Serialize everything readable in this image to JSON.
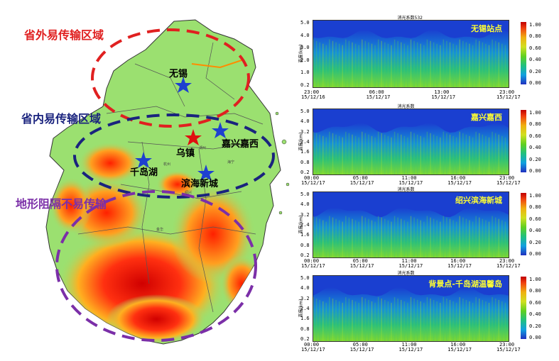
{
  "regions": {
    "outside": {
      "label": "省外易传输区域",
      "color": "#e02020"
    },
    "inside": {
      "label": "省内易传输区域",
      "color": "#1a237e"
    },
    "terrain": {
      "label": "地形阻隔不易传输",
      "color": "#7b2fa8"
    }
  },
  "map_labels": {
    "wuxi": "无锡",
    "wuzhen": "乌镇",
    "jiaxing": "嘉兴嘉西",
    "qiandao": "千岛湖",
    "binhai": "滨海新城",
    "small": [
      "湖州",
      "海宁",
      "杭州",
      "嘉兴",
      "绍兴",
      "宁波",
      "衢州",
      "金华",
      "丽水",
      "温州",
      "台州"
    ]
  },
  "panels": [
    {
      "id": "wuxi",
      "top_title": "消光系数532",
      "title": "无锡站点",
      "y_label": "高度(km)",
      "y_ticks": [
        "5.0",
        "4.0",
        "3.0",
        "2.0",
        "1.0",
        "0.2"
      ],
      "x_ticks": [
        [
          "23:00",
          "15/12/16"
        ],
        [
          "06:00",
          "15/12/17"
        ],
        [
          "13:00",
          "15/12/17"
        ],
        [
          "23:00",
          "15/12/17"
        ]
      ],
      "cbar_ticks": [
        "1.00",
        "0.80",
        "0.60",
        "0.40",
        "0.20",
        "0.00"
      ]
    },
    {
      "id": "jiaxing",
      "top_title": "消光系数",
      "title": "嘉兴嘉西",
      "y_label": "高度(km)",
      "y_ticks": [
        "5.0",
        "4.0",
        "3.2",
        "2.4",
        "1.6",
        "0.8",
        "0.2"
      ],
      "x_ticks": [
        [
          "00:00",
          "15/12/17"
        ],
        [
          "05:00",
          "15/12/17"
        ],
        [
          "11:00",
          "15/12/17"
        ],
        [
          "16:00",
          "15/12/17"
        ],
        [
          "23:00",
          "15/12/17"
        ]
      ],
      "cbar_ticks": [
        "1.00",
        "0.80",
        "0.60",
        "0.40",
        "0.20",
        "0.00"
      ]
    },
    {
      "id": "shaoxing",
      "top_title": "消光系数",
      "title": "绍兴滨海新城",
      "y_label": "高度(km)",
      "y_ticks": [
        "5.0",
        "4.0",
        "3.2",
        "2.4",
        "1.6",
        "0.8",
        "0.2"
      ],
      "x_ticks": [
        [
          "00:00",
          "15/12/17"
        ],
        [
          "05:00",
          "15/12/17"
        ],
        [
          "11:00",
          "15/12/17"
        ],
        [
          "16:00",
          "15/12/17"
        ],
        [
          "23:00",
          "15/12/17"
        ]
      ],
      "cbar_ticks": [
        "1.00",
        "0.80",
        "0.60",
        "0.40",
        "0.20",
        "0.00"
      ]
    },
    {
      "id": "qiandao",
      "top_title": "消光系数",
      "title": "背景点-千岛湖温馨岛",
      "y_label": "高度(km)",
      "y_ticks": [
        "5.0",
        "4.0",
        "3.2",
        "2.4",
        "1.6",
        "0.8",
        "0.2"
      ],
      "x_ticks": [
        [
          "00:00",
          "15/12/17"
        ],
        [
          "05:00",
          "15/12/17"
        ],
        [
          "11:00",
          "15/12/17"
        ],
        [
          "16:00",
          "15/12/17"
        ],
        [
          "23:00",
          "15/12/17"
        ]
      ],
      "cbar_ticks": [
        "1.00",
        "0.80",
        "0.60",
        "0.40",
        "0.20",
        "0.00"
      ]
    }
  ]
}
